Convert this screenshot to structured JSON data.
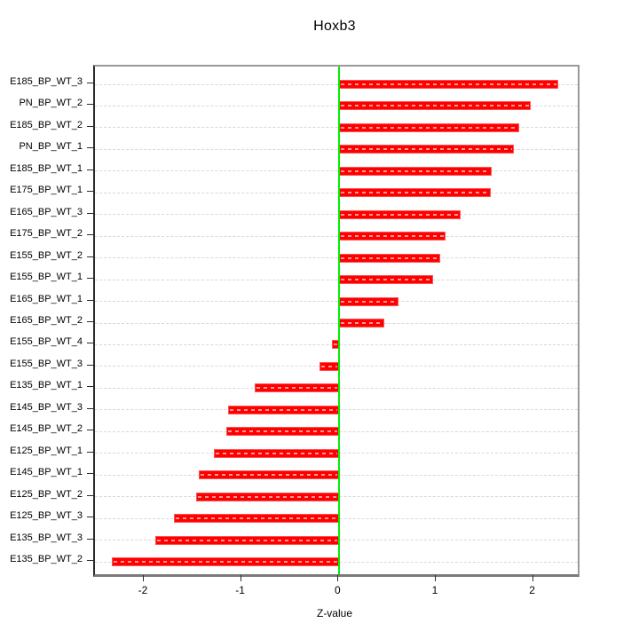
{
  "chart_data": {
    "type": "bar",
    "orientation": "horizontal",
    "title": "Hoxb3",
    "xlabel": "Z-value",
    "ylabel": "",
    "legend": "none",
    "grid": "horizontal-dashed",
    "categories": [
      "E185_BP_WT_3",
      "PN_BP_WT_2",
      "E185_BP_WT_2",
      "PN_BP_WT_1",
      "E185_BP_WT_1",
      "E175_BP_WT_1",
      "E165_BP_WT_3",
      "E175_BP_WT_2",
      "E155_BP_WT_2",
      "E155_BP_WT_1",
      "E165_BP_WT_1",
      "E165_BP_WT_2",
      "E155_BP_WT_4",
      "E155_BP_WT_3",
      "E135_BP_WT_1",
      "E145_BP_WT_3",
      "E145_BP_WT_2",
      "E125_BP_WT_1",
      "E145_BP_WT_1",
      "E125_BP_WT_2",
      "E125_BP_WT_3",
      "E135_BP_WT_3",
      "E135_BP_WT_2"
    ],
    "values": [
      2.25,
      1.97,
      1.85,
      1.79,
      1.57,
      1.56,
      1.25,
      1.09,
      1.04,
      0.96,
      0.61,
      0.46,
      -0.08,
      -0.2,
      -0.87,
      -1.14,
      -1.16,
      -1.29,
      -1.44,
      -1.47,
      -1.7,
      -1.89,
      -2.34
    ],
    "x_ticks": [
      -2,
      -1,
      0,
      1,
      2
    ],
    "xlim": [
      -2.51,
      2.45
    ],
    "colors": {
      "bar": "#ff0000",
      "bar_border": "#ff5252",
      "zero_line": "#00ee00",
      "gridline": "#d8d8d8",
      "box_border": "#9a9a9a",
      "axis_tick": "#2b2b2b",
      "text": "#000000",
      "background": "#ffffff"
    }
  }
}
